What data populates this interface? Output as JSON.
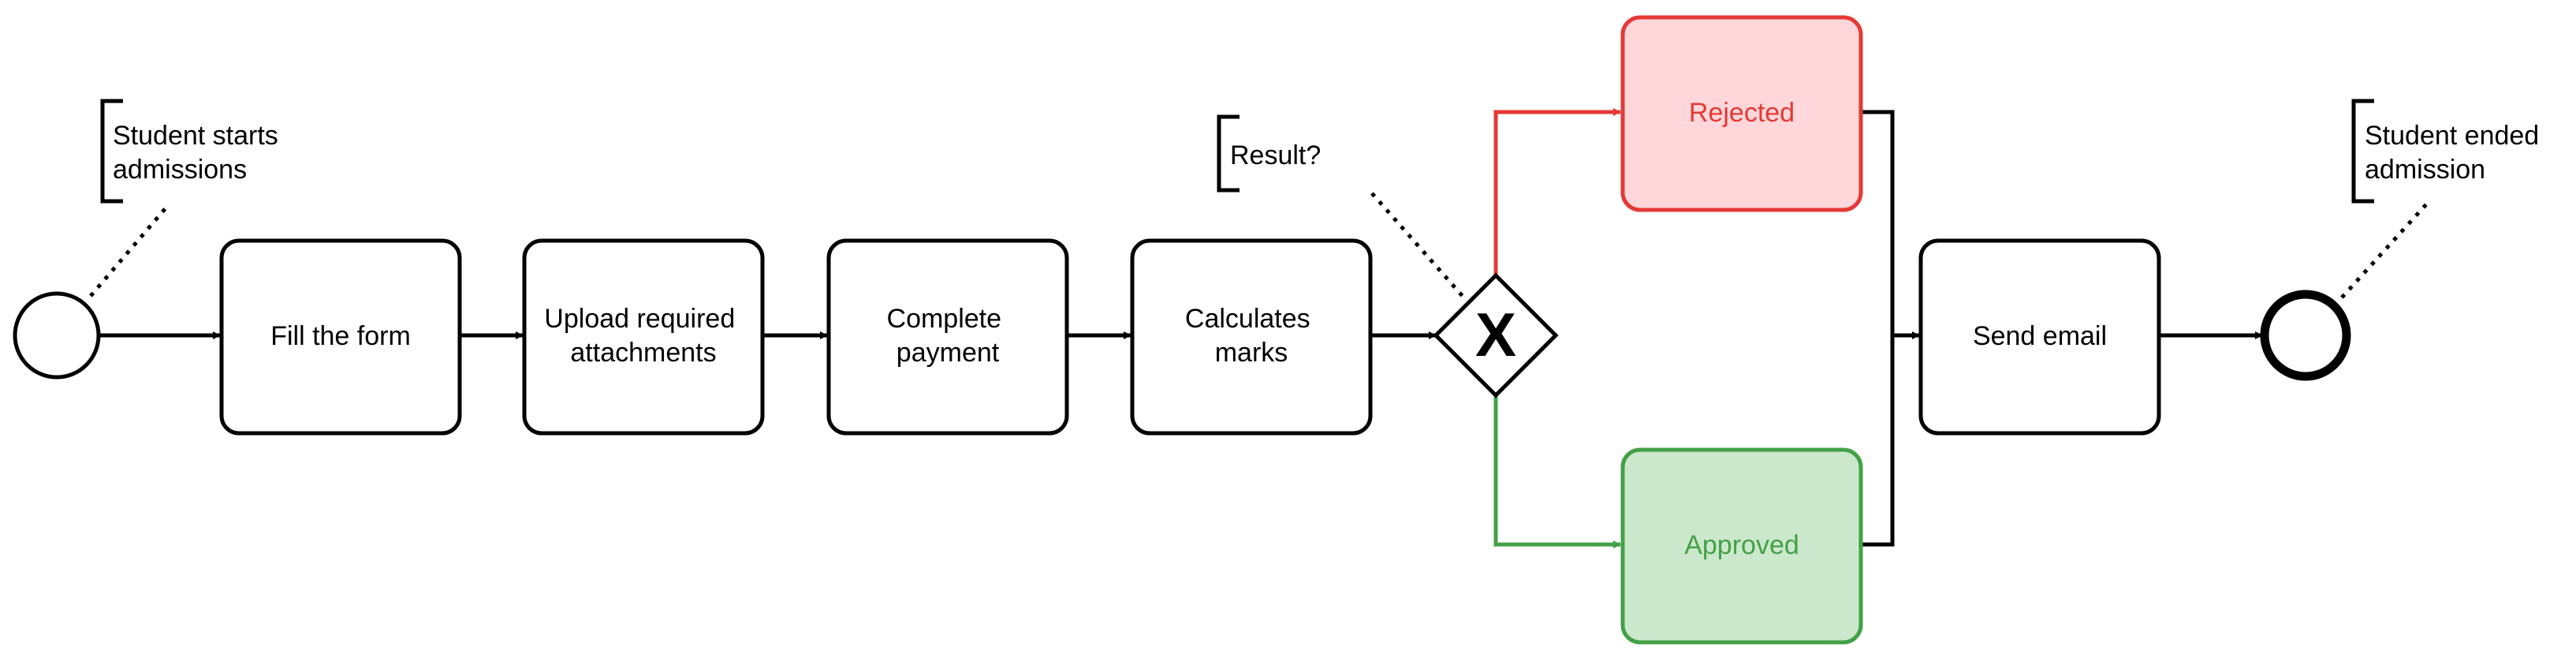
{
  "events": {
    "start": {
      "annotation_lines": [
        "Student starts",
        "admissions"
      ]
    },
    "end": {
      "annotation_lines": [
        "Student ended",
        "admission"
      ]
    }
  },
  "tasks": [
    {
      "id": "fill",
      "lines": [
        "Fill the form"
      ]
    },
    {
      "id": "upload",
      "lines": [
        "Upload required",
        "attachments"
      ]
    },
    {
      "id": "payment",
      "lines": [
        "Complete",
        "payment"
      ]
    },
    {
      "id": "marks",
      "lines": [
        "Calculates",
        "marks"
      ]
    },
    {
      "id": "rejected",
      "lines": [
        "Rejected"
      ],
      "status": "rejected"
    },
    {
      "id": "approved",
      "lines": [
        "Approved"
      ],
      "status": "approved"
    },
    {
      "id": "email",
      "lines": [
        "Send email"
      ]
    }
  ],
  "gateway": {
    "marker": "X",
    "annotation_lines": [
      "Result?"
    ]
  },
  "colors": {
    "stroke": "#000000",
    "rejected_stroke": "#e53935",
    "rejected_fill": "#ffd7da",
    "rejected_text": "#e53935",
    "approved_stroke": "#43a047",
    "approved_fill": "#cce8cc",
    "approved_text": "#43a047"
  }
}
